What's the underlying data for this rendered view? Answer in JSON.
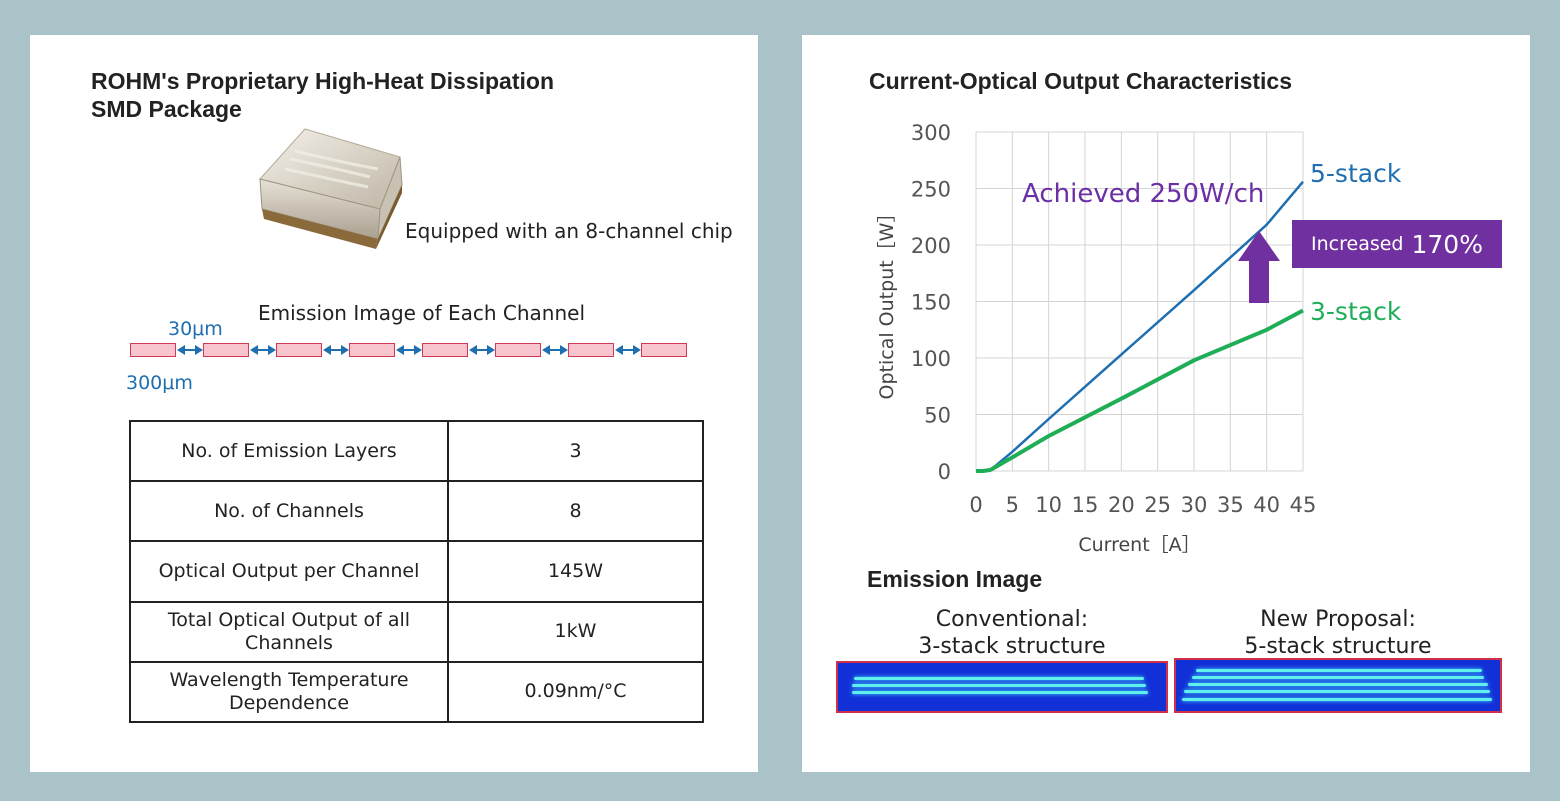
{
  "left_panel": {
    "title_line1": "ROHM's Proprietary High-Heat Dissipation",
    "title_line2": "SMD Package",
    "package_caption": "Equipped with an 8-channel chip",
    "emission_title": "Emission Image of Each Channel",
    "gap_label": "30μm",
    "width_label": "300μm",
    "channel_count": 8,
    "spec_rows": [
      {
        "label": "No. of Emission Layers",
        "value": "3"
      },
      {
        "label": "No. of Channels",
        "value": "8"
      },
      {
        "label": "Optical Output per Channel",
        "value": "145W"
      },
      {
        "label": "Total Optical Output of all Channels",
        "value": "1kW"
      },
      {
        "label": "Wavelength Temperature Dependence",
        "value": "0.09nm/°C"
      }
    ]
  },
  "right_panel": {
    "title": "Current-Optical Output Characteristics",
    "achieved_note": "Achieved 250W/ch",
    "increase_small": "Increased",
    "increase_big": "170%",
    "emission_title": "Emission Image",
    "conventional_caption_1": "Conventional:",
    "conventional_caption_2": "3-stack structure",
    "new_caption_1": "New Proposal:",
    "new_caption_2": "5-stack structure",
    "colors": {
      "series_5": "#1f6fb0",
      "series_3": "#1fae57",
      "accent": "#7030a0"
    }
  },
  "chart_data": {
    "type": "line",
    "title": "Current-Optical Output Characteristics",
    "xlabel": "Current［A］",
    "ylabel": "Optical Output［W］",
    "xlim": [
      0,
      45
    ],
    "ylim": [
      0,
      300
    ],
    "x_ticks": [
      0,
      5,
      10,
      15,
      20,
      25,
      30,
      35,
      40,
      45
    ],
    "y_ticks": [
      0,
      50,
      100,
      150,
      200,
      250,
      300
    ],
    "grid": true,
    "series": [
      {
        "name": "5-stack",
        "x": [
          0,
          1,
          2,
          5,
          10,
          20,
          30,
          40,
          45
        ],
        "y": [
          0,
          0,
          1,
          17,
          46,
          103,
          160,
          218,
          256
        ]
      },
      {
        "name": "3-stack",
        "x": [
          0,
          1,
          2,
          5,
          10,
          20,
          30,
          40,
          45
        ],
        "y": [
          0,
          0,
          1,
          12,
          31,
          64,
          98,
          125,
          142
        ]
      }
    ]
  }
}
